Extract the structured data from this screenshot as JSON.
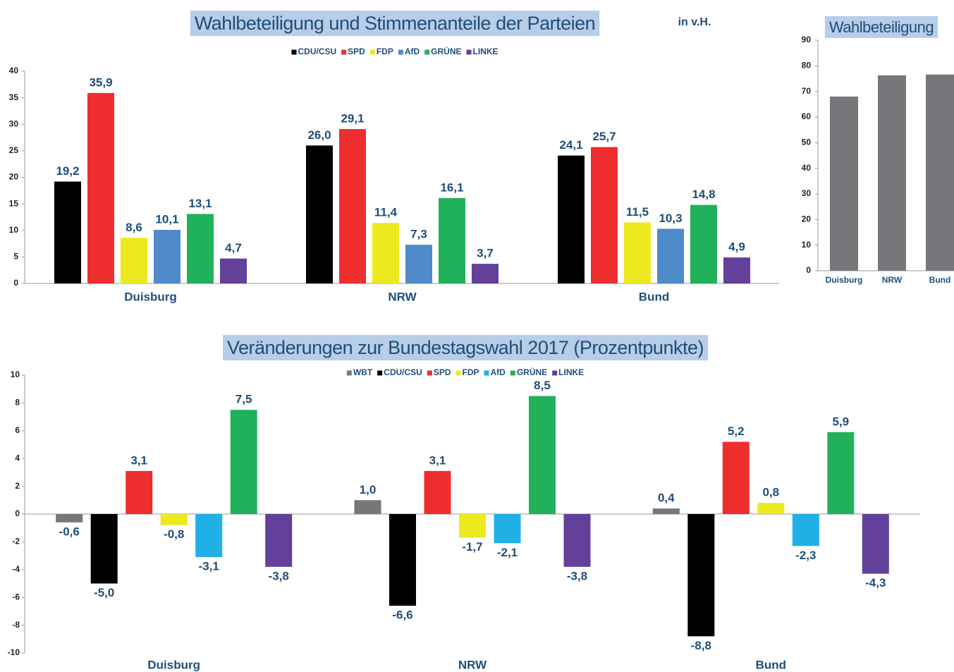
{
  "chart_data": [
    {
      "type": "bar",
      "title": "Wahlbeteiligung und Stimmenanteile der Parteien",
      "annotation": "in v.H.",
      "categories": [
        "Duisburg",
        "NRW",
        "Bund"
      ],
      "series": [
        {
          "name": "CDU/CSU",
          "color": "#000000",
          "values": [
            19.2,
            26.0,
            24.1
          ],
          "value_labels": [
            "19,2",
            "26,0",
            "24,1"
          ]
        },
        {
          "name": "SPD",
          "color": "#ee2d2f",
          "values": [
            35.9,
            29.1,
            25.7
          ],
          "value_labels": [
            "35,9",
            "29,1",
            "25,7"
          ]
        },
        {
          "name": "FDP",
          "color": "#ece91f",
          "values": [
            8.6,
            11.4,
            11.5
          ],
          "value_labels": [
            "8,6",
            "11,4",
            "11,5"
          ]
        },
        {
          "name": "AfD",
          "color": "#4f8ac9",
          "values": [
            10.1,
            7.3,
            10.3
          ],
          "value_labels": [
            "10,1",
            "7,3",
            "10,3"
          ]
        },
        {
          "name": "GRÜNE",
          "color": "#21b15a",
          "values": [
            13.1,
            16.1,
            14.8
          ],
          "value_labels": [
            "13,1",
            "16,1",
            "14,8"
          ]
        },
        {
          "name": "LINKE",
          "color": "#63409a",
          "values": [
            4.7,
            3.7,
            4.9
          ],
          "value_labels": [
            "4,7",
            "3,7",
            "4,9"
          ]
        }
      ],
      "ylim": [
        0,
        40
      ],
      "yticks": [
        0,
        5,
        10,
        15,
        20,
        25,
        30,
        35,
        40
      ]
    },
    {
      "type": "bar",
      "title": "Wahlbeteiligung",
      "categories": [
        "Duisburg",
        "NRW",
        "Bund"
      ],
      "series": [
        {
          "name": "Wahlbeteiligung",
          "color": "#75777a",
          "values": [
            68.0,
            76.3,
            76.6
          ]
        }
      ],
      "ylim": [
        0,
        90
      ],
      "yticks": [
        0,
        10,
        20,
        30,
        40,
        50,
        60,
        70,
        80,
        90
      ]
    },
    {
      "type": "bar",
      "title": "Veränderungen zur Bundestagswahl 2017 (Prozentpunkte)",
      "categories": [
        "Duisburg",
        "NRW",
        "Bund"
      ],
      "series": [
        {
          "name": "WBT",
          "color": "#75777a",
          "values": [
            -0.6,
            1.0,
            0.4
          ],
          "value_labels": [
            "-0,6",
            "1,0",
            "0,4"
          ]
        },
        {
          "name": "CDU/CSU",
          "color": "#000000",
          "values": [
            -5.0,
            -6.6,
            -8.8
          ],
          "value_labels": [
            "-5,0",
            "-6,6",
            "-8,8"
          ]
        },
        {
          "name": "SPD",
          "color": "#ee2d2f",
          "values": [
            3.1,
            3.1,
            5.2
          ],
          "value_labels": [
            "3,1",
            "3,1",
            "5,2"
          ]
        },
        {
          "name": "FDP",
          "color": "#ece91f",
          "values": [
            -0.8,
            -1.7,
            0.8
          ],
          "value_labels": [
            "-0,8",
            "-1,7",
            "0,8"
          ]
        },
        {
          "name": "AfD",
          "color": "#1fb1e6",
          "values": [
            -3.1,
            -2.1,
            -2.3
          ],
          "value_labels": [
            "-3,1",
            "-2,1",
            "-2,3"
          ]
        },
        {
          "name": "GRÜNE",
          "color": "#21b15a",
          "values": [
            7.5,
            8.5,
            5.9
          ],
          "value_labels": [
            "7,5",
            "8,5",
            "5,9"
          ]
        },
        {
          "name": "LINKE",
          "color": "#63409a",
          "values": [
            -3.8,
            -3.8,
            -4.3
          ],
          "value_labels": [
            "-3,8",
            "-3,8",
            "-4,3"
          ]
        }
      ],
      "ylim": [
        -10,
        10
      ],
      "yticks": [
        -10,
        -8,
        -6,
        -4,
        -2,
        0,
        2,
        4,
        6,
        8,
        10
      ]
    }
  ]
}
